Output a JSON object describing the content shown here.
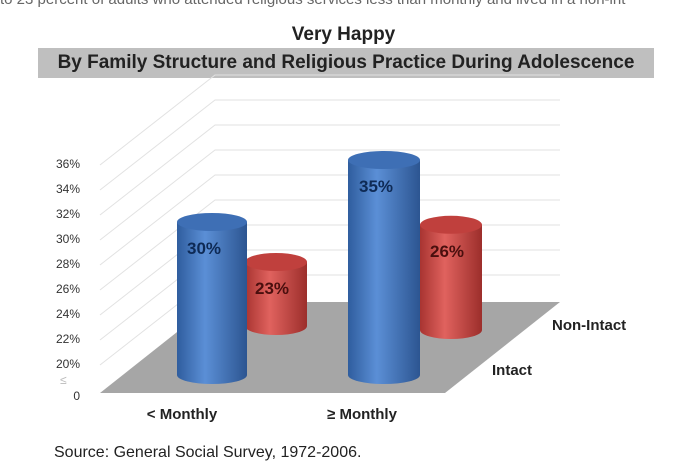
{
  "context_text": "to 23 percent of adults who attended religious services less than monthly and lived in a non-int",
  "chart_data": {
    "type": "bar",
    "variant": "3d-cylinder",
    "title": "Very Happy",
    "subtitle": "By Family Structure and Religious Practice During Adolescence",
    "categories": [
      "< Monthly",
      "≥ Monthly"
    ],
    "series": [
      {
        "name": "Intact",
        "values": [
          30,
          35
        ],
        "labels": [
          "30%",
          "35%"
        ],
        "color": "#4a7cc4"
      },
      {
        "name": "Non-Intact",
        "values": [
          23,
          26
        ],
        "labels": [
          "23%",
          "26%"
        ],
        "color": "#d0504d"
      }
    ],
    "y_ticks": [
      "0",
      "20%",
      "22%",
      "24%",
      "26%",
      "28%",
      "30%",
      "32%",
      "34%",
      "36%"
    ],
    "ylim": [
      20,
      36
    ],
    "axis_break": true,
    "grid": true,
    "floor_color": "#a6a6a6"
  },
  "source": "Source:  General Social Survey, 1972-2006."
}
